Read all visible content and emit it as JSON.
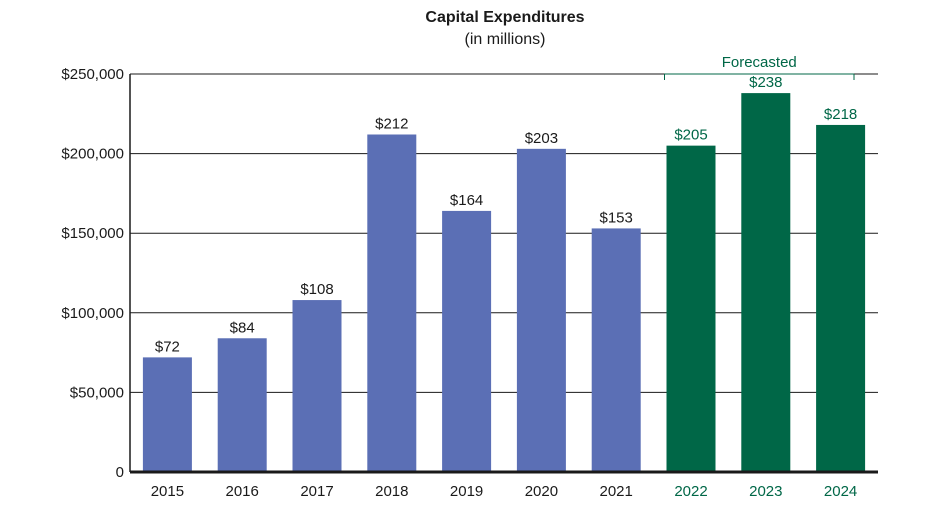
{
  "chart_data": {
    "type": "bar",
    "title": "Capital Expenditures",
    "subtitle": "(in millions)",
    "categories": [
      "2015",
      "2016",
      "2017",
      "2018",
      "2019",
      "2020",
      "2021",
      "2022",
      "2023",
      "2024"
    ],
    "values": [
      72,
      84,
      108,
      212,
      164,
      203,
      153,
      205,
      238,
      218
    ],
    "data_labels": [
      "$72",
      "$84",
      "$108",
      "$212",
      "$164",
      "$203",
      "$153",
      "$205",
      "$238",
      "$218"
    ],
    "forecast_start_index": 7,
    "forecast_label": "Forecasted",
    "y_tick_labels": [
      "0",
      "$50,000",
      "$100,000",
      "$150,000",
      "$200,000",
      "$250,000"
    ],
    "y_tick_values": [
      0,
      50,
      100,
      150,
      200,
      250
    ],
    "ylim": [
      0,
      250
    ],
    "grid": true,
    "colors": {
      "actual": "#5b6fb5",
      "forecast": "#006747",
      "forecast_text": "#006747",
      "text": "#1a1a1a",
      "grid": "#1a1a1a"
    }
  }
}
